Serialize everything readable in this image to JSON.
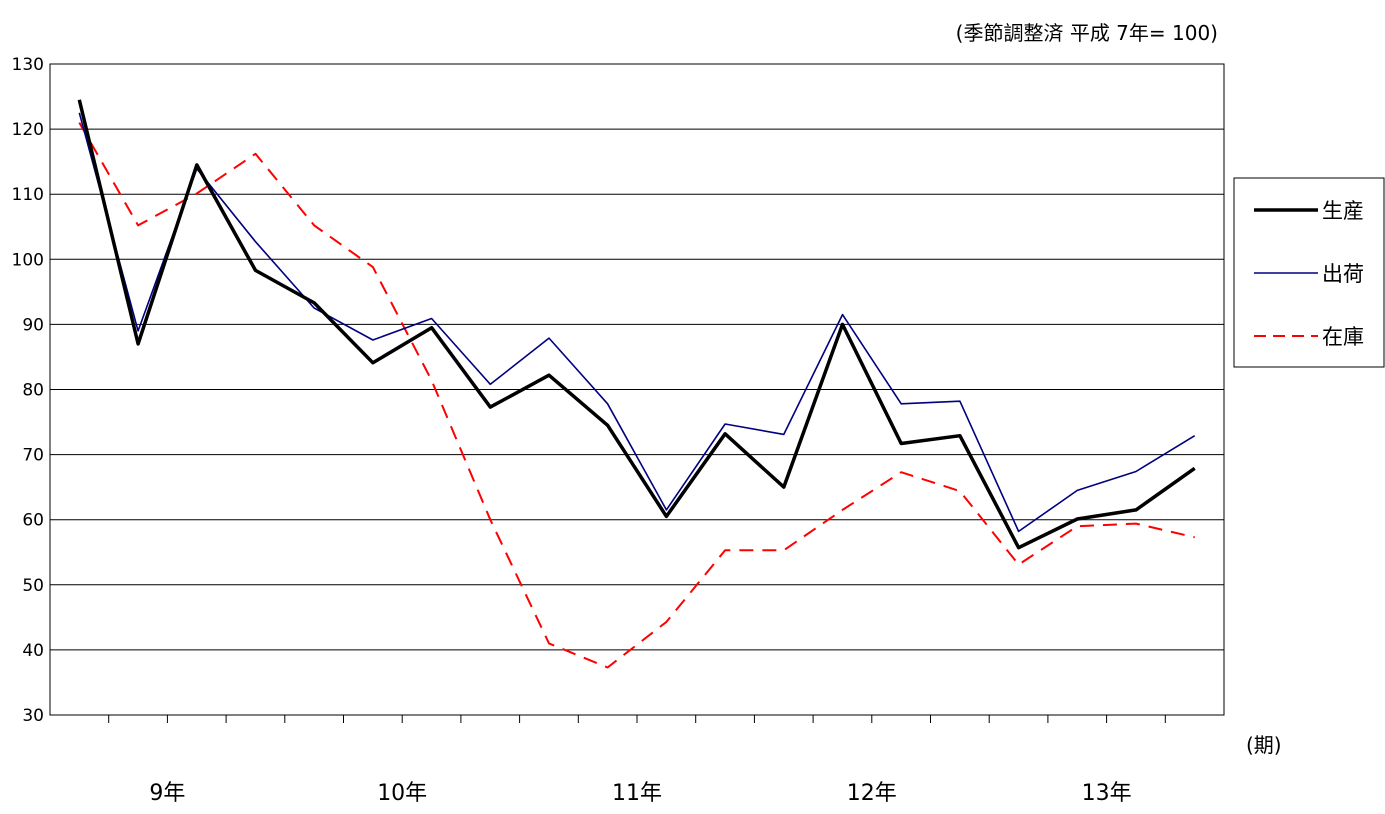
{
  "chart_data": {
    "type": "line",
    "title": "",
    "note": "(季節調整済 平成 7年= 100)",
    "xlabel": "(期)",
    "ylabel": "",
    "ylim": [
      30,
      130
    ],
    "yticks": [
      30,
      40,
      50,
      60,
      70,
      80,
      90,
      100,
      110,
      120,
      130
    ],
    "grid": true,
    "legend_position": "right",
    "year_labels": [
      "9年",
      "10年",
      "11年",
      "12年",
      "13年"
    ],
    "x_count": 20,
    "series": [
      {
        "name": "生産",
        "color": "#000000",
        "style": "solid-thick",
        "values": [
          124.5,
          87.0,
          114.5,
          98.3,
          93.3,
          84.1,
          89.5,
          77.3,
          82.2,
          74.5,
          60.5,
          73.2,
          65.0,
          90.0,
          71.7,
          72.9,
          55.7,
          60.1,
          61.5,
          67.9
        ]
      },
      {
        "name": "出荷",
        "color": "#000080",
        "style": "solid-thin",
        "values": [
          122.5,
          89.0,
          113.9,
          102.7,
          92.5,
          87.6,
          90.9,
          80.8,
          87.9,
          77.8,
          61.5,
          74.7,
          73.1,
          91.5,
          77.8,
          78.2,
          58.2,
          64.5,
          67.4,
          72.9
        ]
      },
      {
        "name": "在庫",
        "color": "#ff0000",
        "style": "dashed",
        "values": [
          121.0,
          105.2,
          110.1,
          116.2,
          105.2,
          98.8,
          81.4,
          60.0,
          41.0,
          37.3,
          44.3,
          55.3,
          55.3,
          61.5,
          67.3,
          64.4,
          53.1,
          59.0,
          59.4,
          57.3
        ]
      }
    ]
  }
}
